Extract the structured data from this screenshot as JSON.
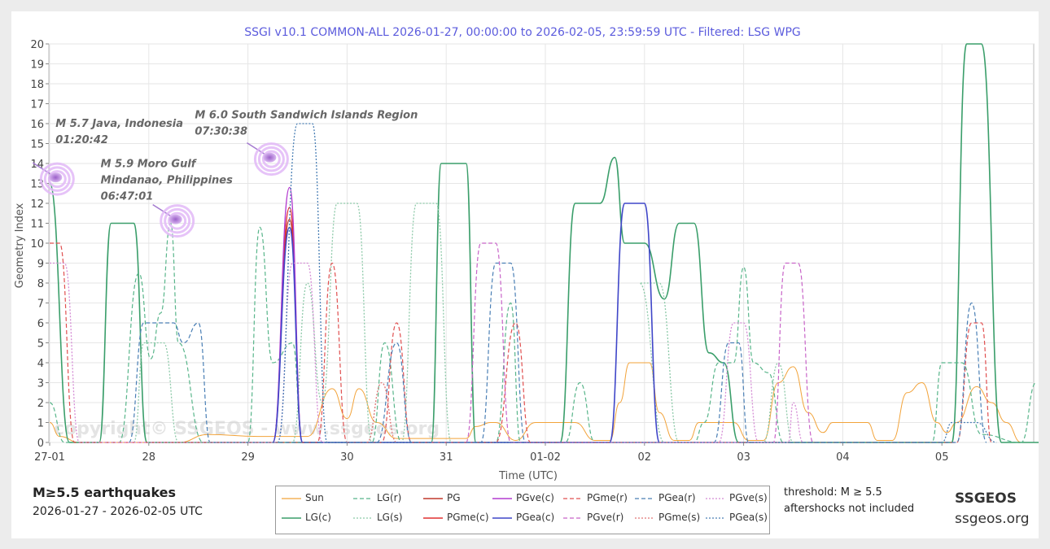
{
  "chart_data": {
    "type": "line",
    "title": "SSGI v10.1 COMMON-ALL 2026-01-27, 00:00:00 to 2026-02-05, 23:59:59 UTC - Filtered: LSG WPG",
    "xlabel": "Time (UTC)",
    "ylabel": "Geometry Index",
    "xlim": [
      0,
      10
    ],
    "ylim": [
      0,
      20
    ],
    "x_ticks": [
      {
        "x": 0,
        "label": "27-01"
      },
      {
        "x": 1,
        "label": "28"
      },
      {
        "x": 2,
        "label": "29"
      },
      {
        "x": 3,
        "label": "30"
      },
      {
        "x": 4,
        "label": "31"
      },
      {
        "x": 5,
        "label": "01-02"
      },
      {
        "x": 6,
        "label": "02"
      },
      {
        "x": 7,
        "label": "03"
      },
      {
        "x": 8,
        "label": "04"
      },
      {
        "x": 9,
        "label": "05"
      }
    ],
    "y_ticks": [
      0,
      1,
      2,
      3,
      4,
      5,
      6,
      7,
      8,
      9,
      10,
      11,
      12,
      13,
      14,
      15,
      16,
      17,
      18,
      19,
      20
    ],
    "grid": true,
    "legend_position": "bottom",
    "series": [
      {
        "name": "Sun",
        "color": "#f2a33a",
        "dash": "solid",
        "width": 1,
        "points": [
          [
            0,
            1
          ],
          [
            0.1,
            0.3
          ],
          [
            0.3,
            0
          ],
          [
            1.3,
            0
          ],
          [
            1.6,
            0.4
          ],
          [
            2.1,
            0.3
          ],
          [
            2.6,
            0.3
          ],
          [
            2.85,
            2.7
          ],
          [
            3.0,
            1.2
          ],
          [
            3.12,
            2.7
          ],
          [
            3.3,
            1
          ],
          [
            3.5,
            0.2
          ],
          [
            4.2,
            0.2
          ],
          [
            4.3,
            0.8
          ],
          [
            4.45,
            1
          ],
          [
            4.5,
            1
          ],
          [
            4.7,
            0.1
          ],
          [
            4.9,
            1
          ],
          [
            5.3,
            1
          ],
          [
            5.5,
            0.1
          ],
          [
            5.65,
            0.1
          ],
          [
            5.75,
            2
          ],
          [
            5.85,
            4
          ],
          [
            6.05,
            4
          ],
          [
            6.15,
            1.5
          ],
          [
            6.3,
            0.1
          ],
          [
            6.45,
            0.1
          ],
          [
            6.55,
            1
          ],
          [
            6.9,
            1
          ],
          [
            7.05,
            0.1
          ],
          [
            7.2,
            0.1
          ],
          [
            7.35,
            3
          ],
          [
            7.5,
            3.8
          ],
          [
            7.65,
            1.5
          ],
          [
            7.8,
            0.5
          ],
          [
            7.9,
            1
          ],
          [
            8.25,
            1
          ],
          [
            8.35,
            0.1
          ],
          [
            8.5,
            0.1
          ],
          [
            8.65,
            2.5
          ],
          [
            8.8,
            3
          ],
          [
            8.95,
            1
          ],
          [
            9.05,
            0.5
          ],
          [
            9.15,
            1
          ],
          [
            9.35,
            2.8
          ],
          [
            9.5,
            2
          ],
          [
            9.65,
            1
          ],
          [
            9.8,
            0
          ]
        ]
      },
      {
        "name": "LG(c)",
        "color": "#3a9e6a",
        "dash": "solid",
        "width": 1.6,
        "points": [
          [
            0,
            13
          ],
          [
            0.2,
            0
          ],
          [
            0.5,
            0
          ],
          [
            0.62,
            11
          ],
          [
            0.85,
            11
          ],
          [
            0.98,
            0
          ],
          [
            3.85,
            0
          ],
          [
            3.95,
            14
          ],
          [
            4.2,
            14
          ],
          [
            4.3,
            0
          ],
          [
            5.15,
            0
          ],
          [
            5.3,
            12
          ],
          [
            5.55,
            12
          ],
          [
            5.7,
            14.3
          ],
          [
            5.8,
            10
          ],
          [
            6.0,
            10
          ],
          [
            6.2,
            7.2
          ],
          [
            6.35,
            11
          ],
          [
            6.5,
            11
          ],
          [
            6.65,
            4.5
          ],
          [
            6.8,
            4
          ],
          [
            6.95,
            0
          ],
          [
            9.1,
            0
          ],
          [
            9.25,
            20
          ],
          [
            9.4,
            20
          ],
          [
            9.6,
            0
          ],
          [
            10,
            0
          ]
        ]
      },
      {
        "name": "LG(r)",
        "color": "#58b58a",
        "dash": "dash",
        "width": 1.2,
        "points": [
          [
            0,
            2
          ],
          [
            0.15,
            0
          ],
          [
            0.7,
            0
          ],
          [
            0.9,
            8.5
          ],
          [
            1.02,
            4.2
          ],
          [
            1.12,
            6.5
          ],
          [
            1.22,
            11
          ],
          [
            1.3,
            5
          ],
          [
            1.55,
            0
          ],
          [
            2.0,
            0
          ],
          [
            2.12,
            10.8
          ],
          [
            2.25,
            4
          ],
          [
            2.45,
            5
          ],
          [
            2.55,
            0
          ],
          [
            3.25,
            0
          ],
          [
            3.38,
            5
          ],
          [
            3.55,
            0
          ],
          [
            4.5,
            0
          ],
          [
            4.65,
            7
          ],
          [
            4.75,
            0
          ],
          [
            5.2,
            0
          ],
          [
            5.35,
            3
          ],
          [
            5.5,
            0
          ],
          [
            6.5,
            0
          ],
          [
            6.6,
            1
          ],
          [
            6.75,
            4
          ],
          [
            6.9,
            4
          ],
          [
            7.0,
            8.8
          ],
          [
            7.1,
            4
          ],
          [
            7.25,
            3.5
          ],
          [
            7.4,
            0
          ],
          [
            8.9,
            0
          ],
          [
            9.0,
            4
          ],
          [
            9.2,
            4
          ],
          [
            9.4,
            0.4
          ],
          [
            9.8,
            0
          ],
          [
            9.95,
            3
          ]
        ]
      },
      {
        "name": "LG(s)",
        "color": "#8cc9a8",
        "dash": "dot",
        "width": 1.3,
        "points": [
          [
            0.85,
            0
          ],
          [
            0.95,
            5
          ],
          [
            1.15,
            5
          ],
          [
            1.3,
            0
          ],
          [
            2.45,
            0
          ],
          [
            2.6,
            8
          ],
          [
            2.75,
            2
          ],
          [
            2.9,
            12
          ],
          [
            3.1,
            12
          ],
          [
            3.25,
            0
          ],
          [
            3.55,
            0
          ],
          [
            3.7,
            12
          ],
          [
            3.9,
            12
          ],
          [
            4.05,
            0
          ],
          [
            6.2,
            0
          ],
          [
            5.95,
            8
          ],
          [
            6.15,
            8
          ],
          [
            6.35,
            0
          ],
          [
            7.2,
            0
          ],
          [
            7.35,
            4
          ],
          [
            7.5,
            0
          ]
        ]
      },
      {
        "name": "PG",
        "color": "#c0392b",
        "dash": "solid",
        "width": 1.4,
        "points": [
          [
            2.25,
            0
          ],
          [
            2.42,
            11.2
          ],
          [
            2.55,
            0
          ]
        ]
      },
      {
        "name": "PGme(c)",
        "color": "#e03030",
        "dash": "solid",
        "width": 1.4,
        "points": [
          [
            2.25,
            0
          ],
          [
            2.42,
            11.8
          ],
          [
            2.55,
            0
          ]
        ]
      },
      {
        "name": "PGve(c)",
        "color": "#b43cd0",
        "dash": "solid",
        "width": 1.4,
        "points": [
          [
            2.25,
            0
          ],
          [
            2.42,
            12.8
          ],
          [
            2.55,
            0
          ]
        ]
      },
      {
        "name": "PGea(c)",
        "color": "#3f46c8",
        "dash": "solid",
        "width": 1.6,
        "points": [
          [
            2.25,
            0
          ],
          [
            2.42,
            10.8
          ],
          [
            2.55,
            0
          ],
          [
            5.65,
            0
          ],
          [
            5.8,
            12
          ],
          [
            6.0,
            12
          ],
          [
            6.15,
            0
          ]
        ]
      },
      {
        "name": "PGme(r)",
        "color": "#e05050",
        "dash": "dash",
        "width": 1.2,
        "points": [
          [
            0,
            10
          ],
          [
            0.1,
            10
          ],
          [
            0.25,
            0
          ],
          [
            2.7,
            0
          ],
          [
            2.85,
            9
          ],
          [
            3.0,
            0
          ],
          [
            3.35,
            0
          ],
          [
            3.5,
            6
          ],
          [
            3.65,
            0
          ],
          [
            4.5,
            0
          ],
          [
            4.7,
            6
          ],
          [
            4.85,
            0
          ],
          [
            9.15,
            0
          ],
          [
            9.3,
            6
          ],
          [
            9.4,
            6
          ],
          [
            9.5,
            0
          ]
        ]
      },
      {
        "name": "PGea(r)",
        "color": "#4a7fb5",
        "dash": "dash",
        "width": 1.2,
        "points": [
          [
            0.8,
            0
          ],
          [
            0.95,
            6
          ],
          [
            1.25,
            6
          ],
          [
            1.35,
            5
          ],
          [
            1.5,
            6
          ],
          [
            1.62,
            0
          ],
          [
            3.3,
            0
          ],
          [
            3.5,
            5
          ],
          [
            3.65,
            0
          ],
          [
            4.35,
            0
          ],
          [
            4.5,
            9
          ],
          [
            4.65,
            9
          ],
          [
            4.8,
            0
          ],
          [
            6.7,
            0
          ],
          [
            6.85,
            5
          ],
          [
            6.95,
            5
          ],
          [
            7.05,
            0
          ],
          [
            9.15,
            0
          ],
          [
            9.3,
            7
          ],
          [
            9.45,
            0
          ]
        ]
      },
      {
        "name": "PGve(r)",
        "color": "#c864c8",
        "dash": "dash",
        "width": 1.2,
        "points": [
          [
            4.2,
            0
          ],
          [
            4.35,
            10
          ],
          [
            4.5,
            10
          ],
          [
            4.65,
            0
          ],
          [
            7.3,
            0
          ],
          [
            7.42,
            9
          ],
          [
            7.55,
            9
          ],
          [
            7.7,
            0
          ]
        ]
      },
      {
        "name": "PGve(s)",
        "color": "#d48ad4",
        "dash": "dot",
        "width": 1.3,
        "points": [
          [
            0,
            9
          ],
          [
            0.15,
            9
          ],
          [
            0.3,
            0
          ],
          [
            2.3,
            0
          ],
          [
            2.45,
            9
          ],
          [
            2.6,
            9
          ],
          [
            2.75,
            0
          ],
          [
            6.75,
            0
          ],
          [
            6.9,
            6
          ],
          [
            7.0,
            6
          ],
          [
            7.15,
            0
          ],
          [
            7.45,
            0
          ],
          [
            7.5,
            2
          ],
          [
            7.6,
            0
          ]
        ]
      },
      {
        "name": "PGme(s)",
        "color": "#e07575",
        "dash": "dot",
        "width": 1.3,
        "points": [
          [
            3.2,
            0
          ],
          [
            3.35,
            3
          ],
          [
            3.5,
            0
          ]
        ]
      },
      {
        "name": "PGea(s)",
        "color": "#4a7fb5",
        "dash": "dot",
        "width": 1.3,
        "points": [
          [
            2.3,
            0
          ],
          [
            2.5,
            16
          ],
          [
            2.65,
            16
          ],
          [
            2.8,
            0
          ],
          [
            9.0,
            0
          ],
          [
            9.1,
            1
          ],
          [
            9.35,
            1
          ],
          [
            9.55,
            0
          ]
        ]
      }
    ],
    "annotations": [
      {
        "x": 0.06,
        "y": 13.3,
        "lines": [
          "M 5.7 Java, Indonesia",
          "01:20:42"
        ]
      },
      {
        "x": 2.22,
        "y": 14.3,
        "lines": [
          "M 6.0 South Sandwich Islands Region",
          "07:30:38"
        ]
      },
      {
        "x": 1.27,
        "y": 11.2,
        "lines": [
          "M 5.9 Moro Gulf",
          "Mindanao, Philippines",
          "06:47:01"
        ]
      }
    ],
    "watermark": "copyright© SSGEOS - www.ssgeos.org"
  },
  "footer": {
    "title": "M≥5.5 earthquakes",
    "date_range": "2026-01-27 - 2026-02-05 UTC",
    "threshold": "threshold: M ≥ 5.5",
    "aftershocks": "aftershocks not included",
    "brand": "SSGEOS",
    "brand_url": "ssgeos.org"
  },
  "legend": {
    "rows": [
      [
        "Sun",
        "LG(r)",
        "PG",
        "PGve(c)",
        "PGme(r)",
        "PGea(r)",
        "PGve(s)"
      ],
      [
        "LG(c)",
        "LG(s)",
        "PGme(c)",
        "PGea(c)",
        "PGve(r)",
        "PGme(s)",
        "PGea(s)"
      ]
    ]
  }
}
